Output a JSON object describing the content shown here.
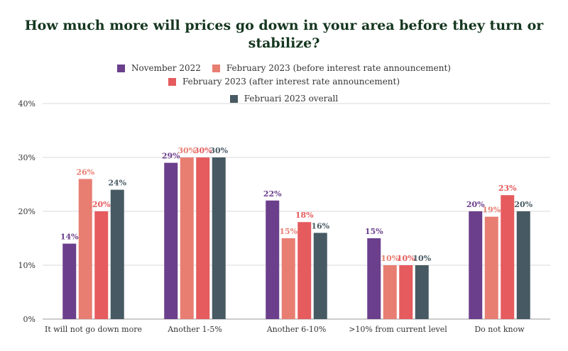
{
  "chart_data": {
    "type": "bar",
    "title": "How much more will prices go down in your area before they turn or stabilize?",
    "categories": [
      "It will not go down more",
      "Another 1-5%",
      "Another  6-10%",
      ">10% from current level",
      "Do not know"
    ],
    "series": [
      {
        "name": "November 2022",
        "color": "#6b3f8c",
        "values": [
          14,
          29,
          22,
          15,
          20
        ],
        "labels": [
          "14%",
          "29%",
          "22%",
          "15%",
          "20%"
        ]
      },
      {
        "name": "February 2023 (before interest rate announcement)",
        "color": "#e87e72",
        "values": [
          26,
          30,
          15,
          10,
          19
        ],
        "labels": [
          "26%",
          "30%",
          "15%",
          "10%",
          "19%"
        ]
      },
      {
        "name": "February 2023 (after interest rate announcement)",
        "color": "#e55b5e",
        "values": [
          20,
          30,
          18,
          10,
          23
        ],
        "labels": [
          "20%",
          "30%",
          "18%",
          "10%",
          "23%"
        ]
      },
      {
        "name": "Februari 2023 overall",
        "color": "#475a63",
        "values": [
          24,
          30,
          16,
          10,
          20
        ],
        "labels": [
          "24%",
          "30%",
          "16%",
          "10%",
          "20%"
        ]
      }
    ],
    "yticks": [
      "0%",
      "10%",
      "20%",
      "30%",
      "40%"
    ],
    "ylim": [
      0,
      40
    ],
    "grid": true,
    "legend_position": "top"
  }
}
